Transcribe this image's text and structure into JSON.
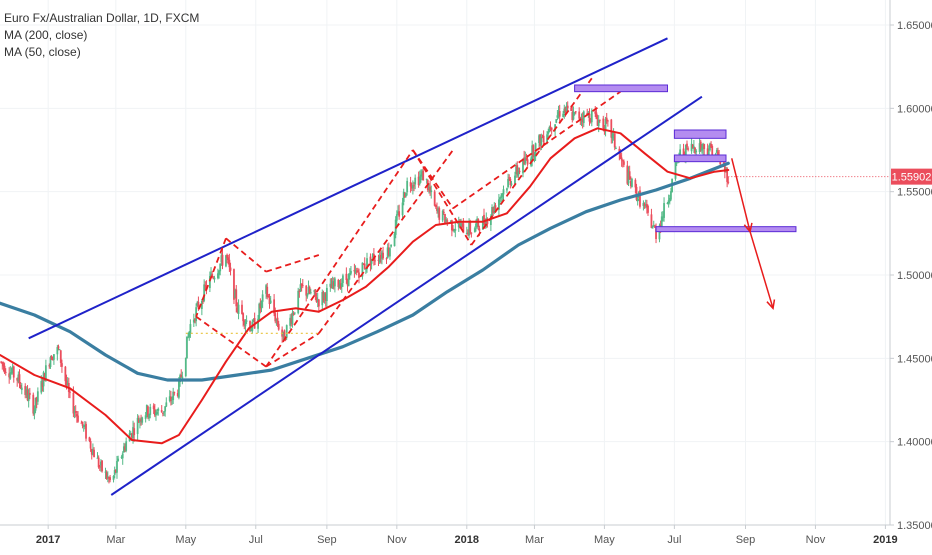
{
  "legend": {
    "title": "Euro Fx/Australian Dollar, 1D, FXCM",
    "ma200": "MA (200, close)",
    "ma50": "MA (50, close)"
  },
  "colors": {
    "up_candle": "#53b987",
    "down_candle": "#eb4d5c",
    "ma50": "#e81c1c",
    "ma200": "#3a7ea1",
    "channel": "#1f22c9",
    "dashed": "#e81c1c",
    "zone_fill": "#b48cf0",
    "zone_stroke": "#5a2bd6",
    "arrow": "#e81c1c",
    "price_tag": "#eb4d5c",
    "grid": "#f0f3f5"
  },
  "chart_data": {
    "type": "candlestick",
    "instrument": "Euro Fx/Australian Dollar",
    "timeframe": "1D",
    "source": "FXCM",
    "x_range": [
      "2016-11-20",
      "2019-01-05"
    ],
    "y_range": [
      1.35,
      1.665
    ],
    "y_ticks": [
      1.35,
      1.4,
      1.45,
      1.5,
      1.55,
      1.6,
      1.65
    ],
    "y_tick_labels": [
      "1.35000",
      "1.40000",
      "1.45000",
      "1.50000",
      "1.55000",
      "1.60000",
      "1.65000"
    ],
    "x_ticks": [
      {
        "date": "2017-01-01",
        "label": "2017",
        "bold": true
      },
      {
        "date": "2017-03-01",
        "label": "Mar",
        "bold": false
      },
      {
        "date": "2017-05-01",
        "label": "May",
        "bold": false
      },
      {
        "date": "2017-07-01",
        "label": "Jul",
        "bold": false
      },
      {
        "date": "2017-09-01",
        "label": "Sep",
        "bold": false
      },
      {
        "date": "2017-11-01",
        "label": "Nov",
        "bold": false
      },
      {
        "date": "2018-01-01",
        "label": "2018",
        "bold": true
      },
      {
        "date": "2018-03-01",
        "label": "Mar",
        "bold": false
      },
      {
        "date": "2018-05-01",
        "label": "May",
        "bold": false
      },
      {
        "date": "2018-07-01",
        "label": "Jul",
        "bold": false
      },
      {
        "date": "2018-09-01",
        "label": "Sep",
        "bold": false
      },
      {
        "date": "2018-11-01",
        "label": "Nov",
        "bold": false
      },
      {
        "date": "2019-01-01",
        "label": "2019",
        "bold": true
      }
    ],
    "last_price": 1.55902,
    "last_price_label": "1.55902",
    "price_path": [
      [
        "2016-11-20",
        1.448
      ],
      [
        "2016-12-05",
        1.438
      ],
      [
        "2016-12-20",
        1.42
      ],
      [
        "2017-01-03",
        1.452
      ],
      [
        "2017-01-10",
        1.455
      ],
      [
        "2017-01-20",
        1.425
      ],
      [
        "2017-02-01",
        1.408
      ],
      [
        "2017-02-15",
        1.385
      ],
      [
        "2017-02-25",
        1.375
      ],
      [
        "2017-03-10",
        1.4
      ],
      [
        "2017-03-25",
        1.418
      ],
      [
        "2017-04-10",
        1.418
      ],
      [
        "2017-04-25",
        1.432
      ],
      [
        "2017-05-05",
        1.47
      ],
      [
        "2017-05-20",
        1.495
      ],
      [
        "2017-06-05",
        1.512
      ],
      [
        "2017-06-15",
        1.48
      ],
      [
        "2017-06-28",
        1.468
      ],
      [
        "2017-07-10",
        1.49
      ],
      [
        "2017-07-25",
        1.462
      ],
      [
        "2017-08-10",
        1.492
      ],
      [
        "2017-08-25",
        1.485
      ],
      [
        "2017-09-10",
        1.495
      ],
      [
        "2017-09-25",
        1.5
      ],
      [
        "2017-10-10",
        1.51
      ],
      [
        "2017-10-25",
        1.515
      ],
      [
        "2017-11-10",
        1.555
      ],
      [
        "2017-11-25",
        1.56
      ],
      [
        "2017-12-05",
        1.538
      ],
      [
        "2017-12-20",
        1.53
      ],
      [
        "2018-01-05",
        1.527
      ],
      [
        "2018-01-20",
        1.535
      ],
      [
        "2018-02-05",
        1.555
      ],
      [
        "2018-02-20",
        1.567
      ],
      [
        "2018-03-10",
        1.585
      ],
      [
        "2018-03-25",
        1.6
      ],
      [
        "2018-04-05",
        1.595
      ],
      [
        "2018-04-20",
        1.596
      ],
      [
        "2018-05-05",
        1.588
      ],
      [
        "2018-05-20",
        1.56
      ],
      [
        "2018-06-05",
        1.54
      ],
      [
        "2018-06-15",
        1.525
      ],
      [
        "2018-06-25",
        1.545
      ],
      [
        "2018-07-05",
        1.572
      ],
      [
        "2018-07-20",
        1.578
      ],
      [
        "2018-08-05",
        1.575
      ],
      [
        "2018-08-17",
        1.559
      ]
    ],
    "ma200": [
      [
        "2016-11-20",
        1.483
      ],
      [
        "2016-12-20",
        1.476
      ],
      [
        "2017-01-20",
        1.466
      ],
      [
        "2017-02-20",
        1.452
      ],
      [
        "2017-03-20",
        1.441
      ],
      [
        "2017-04-15",
        1.437
      ],
      [
        "2017-05-15",
        1.437
      ],
      [
        "2017-06-15",
        1.44
      ],
      [
        "2017-07-15",
        1.443
      ],
      [
        "2017-08-15",
        1.45
      ],
      [
        "2017-09-15",
        1.457
      ],
      [
        "2017-10-15",
        1.466
      ],
      [
        "2017-11-15",
        1.476
      ],
      [
        "2017-12-15",
        1.49
      ],
      [
        "2018-01-15",
        1.503
      ],
      [
        "2018-02-15",
        1.518
      ],
      [
        "2018-03-15",
        1.528
      ],
      [
        "2018-04-15",
        1.538
      ],
      [
        "2018-05-15",
        1.545
      ],
      [
        "2018-06-15",
        1.551
      ],
      [
        "2018-07-15",
        1.558
      ],
      [
        "2018-08-17",
        1.567
      ]
    ],
    "ma50": [
      [
        "2016-11-20",
        1.452
      ],
      [
        "2016-12-20",
        1.44
      ],
      [
        "2017-01-20",
        1.432
      ],
      [
        "2017-02-20",
        1.416
      ],
      [
        "2017-03-15",
        1.401
      ],
      [
        "2017-04-10",
        1.399
      ],
      [
        "2017-04-25",
        1.404
      ],
      [
        "2017-05-15",
        1.425
      ],
      [
        "2017-06-05",
        1.448
      ],
      [
        "2017-06-25",
        1.468
      ],
      [
        "2017-07-15",
        1.478
      ],
      [
        "2017-08-05",
        1.48
      ],
      [
        "2017-08-25",
        1.478
      ],
      [
        "2017-09-15",
        1.485
      ],
      [
        "2017-10-05",
        1.493
      ],
      [
        "2017-10-25",
        1.505
      ],
      [
        "2017-11-15",
        1.52
      ],
      [
        "2017-12-05",
        1.53
      ],
      [
        "2017-12-25",
        1.532
      ],
      [
        "2018-01-15",
        1.532
      ],
      [
        "2018-02-05",
        1.537
      ],
      [
        "2018-02-25",
        1.553
      ],
      [
        "2018-03-15",
        1.57
      ],
      [
        "2018-04-05",
        1.582
      ],
      [
        "2018-04-25",
        1.588
      ],
      [
        "2018-05-15",
        1.585
      ],
      [
        "2018-06-05",
        1.573
      ],
      [
        "2018-06-25",
        1.562
      ],
      [
        "2018-07-15",
        1.558
      ],
      [
        "2018-08-05",
        1.562
      ],
      [
        "2018-08-17",
        1.563
      ]
    ],
    "annotations": {
      "channel_lines": [
        [
          [
            "2017-02-25",
            1.368
          ],
          [
            "2018-07-25",
            1.607
          ]
        ],
        [
          [
            "2016-12-15",
            1.462
          ],
          [
            "2018-06-25",
            1.642
          ]
        ]
      ],
      "dashed_lines": [
        [
          [
            "2017-06-05",
            1.522
          ],
          [
            "2017-07-10",
            1.502
          ]
        ],
        [
          [
            "2017-06-05",
            1.522
          ],
          [
            "2017-05-10",
            1.475
          ]
        ],
        [
          [
            "2017-05-10",
            1.475
          ],
          [
            "2017-07-10",
            1.445
          ]
        ],
        [
          [
            "2017-07-10",
            1.445
          ],
          [
            "2017-08-25",
            1.465
          ]
        ],
        [
          [
            "2017-07-10",
            1.502
          ],
          [
            "2017-08-25",
            1.512
          ]
        ],
        [
          [
            "2017-07-10",
            1.445
          ],
          [
            "2017-11-15",
            1.575
          ]
        ],
        [
          [
            "2017-08-25",
            1.465
          ],
          [
            "2017-12-20",
            1.575
          ]
        ],
        [
          [
            "2017-11-15",
            1.575
          ],
          [
            "2017-12-20",
            1.54
          ]
        ],
        [
          [
            "2017-11-15",
            1.575
          ],
          [
            "2018-01-05",
            1.518
          ]
        ],
        [
          [
            "2018-01-05",
            1.518
          ],
          [
            "2018-04-20",
            1.618
          ]
        ],
        [
          [
            "2017-12-20",
            1.54
          ],
          [
            "2018-05-15",
            1.61
          ]
        ]
      ],
      "zones": [
        {
          "x1": "2018-04-05",
          "x2": "2018-06-25",
          "y1": 1.61,
          "y2": 1.614
        },
        {
          "x1": "2018-07-01",
          "x2": "2018-08-15",
          "y1": 1.582,
          "y2": 1.587
        },
        {
          "x1": "2018-07-01",
          "x2": "2018-08-15",
          "y1": 1.568,
          "y2": 1.572
        },
        {
          "x1": "2018-06-15",
          "x2": "2018-10-15",
          "y1": 1.526,
          "y2": 1.529
        }
      ],
      "projection_arrows": [
        [
          [
            "2018-08-20",
            1.57
          ],
          [
            "2018-09-05",
            1.526
          ]
        ],
        [
          [
            "2018-09-05",
            1.526
          ],
          [
            "2018-09-25",
            1.48
          ]
        ]
      ],
      "dotted_level": {
        "x1": "2017-05-01",
        "x2": "2017-08-25",
        "y": 1.465
      }
    }
  }
}
